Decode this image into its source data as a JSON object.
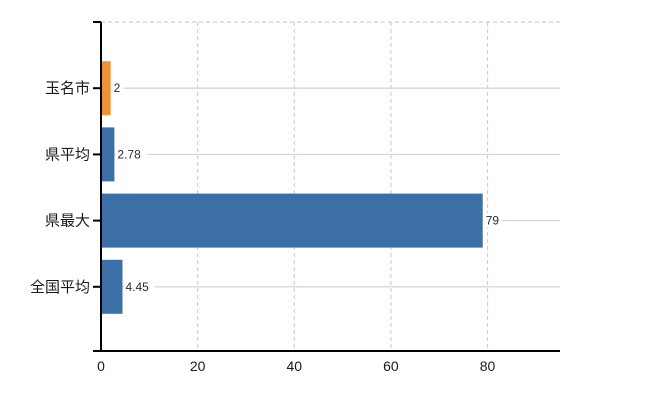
{
  "chart_data": {
    "type": "bar",
    "orientation": "horizontal",
    "title": "",
    "xlabel": "",
    "ylabel": "",
    "categories": [
      "玉名市",
      "県平均",
      "県最大",
      "全国平均"
    ],
    "values": [
      2,
      2.78,
      79,
      4.45
    ],
    "value_labels": [
      "2",
      "2.78",
      "79",
      "4.45"
    ],
    "bar_colors": [
      "#ee9233",
      "#3d6fa7",
      "#3d6fa7",
      "#3d6fa7"
    ],
    "x_ticks": [
      0,
      20,
      40,
      60,
      80
    ],
    "x_tick_labels": [
      "0",
      "20",
      "40",
      "60",
      "80"
    ],
    "xlim": [
      0,
      95
    ],
    "legend": null,
    "grid": {
      "vertical_dashed_at_ticks": true,
      "top_border_dashed": true,
      "horizontal_lines_at_category_centers": true
    },
    "colors": {
      "background": "#ffffff",
      "axis": "#000000",
      "tick_text": "#1a1a1a",
      "category_text": "#1a1a1a",
      "value_text": "#242c3c",
      "grid_dashed": "#ccd2cb",
      "category_line": "#d6dbd0"
    }
  }
}
